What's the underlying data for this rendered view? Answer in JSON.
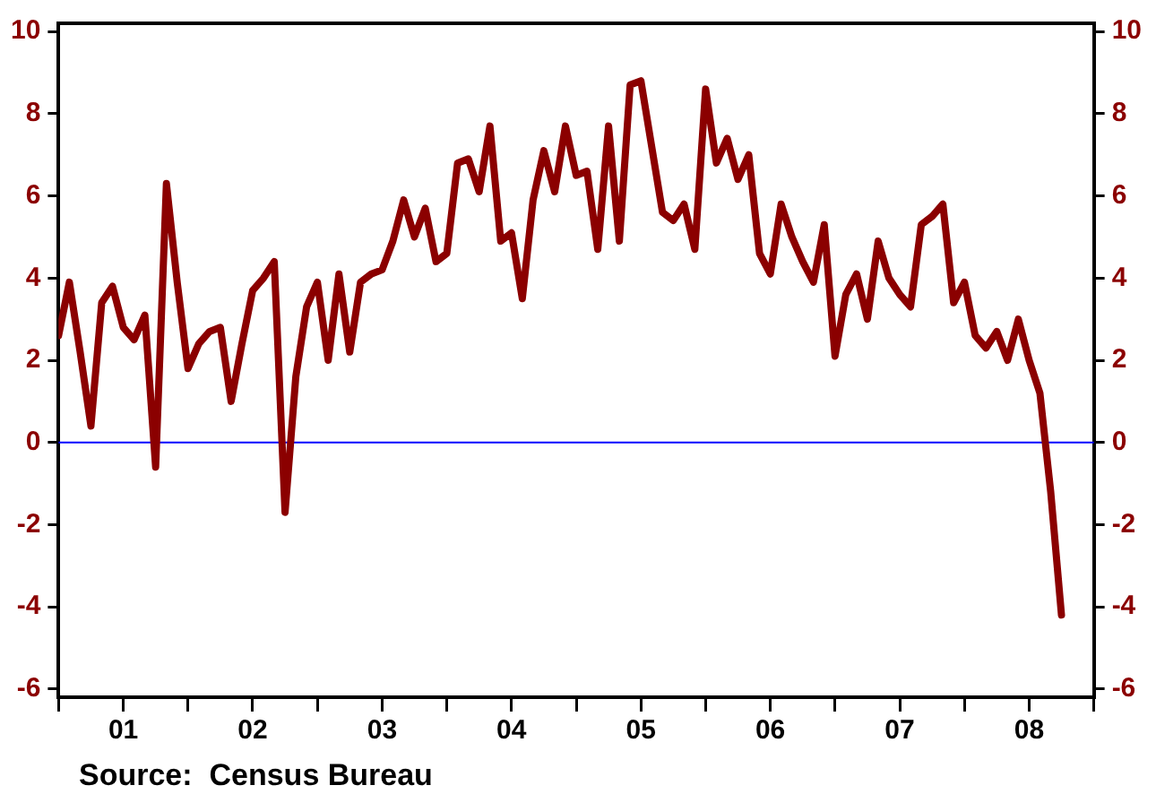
{
  "chart_data": {
    "type": "line",
    "x": [
      "2001-01",
      "2001-02",
      "2001-03",
      "2001-04",
      "2001-05",
      "2001-06",
      "2001-07",
      "2001-08",
      "2001-09",
      "2001-10",
      "2001-11",
      "2001-12",
      "2002-01",
      "2002-02",
      "2002-03",
      "2002-04",
      "2002-05",
      "2002-06",
      "2002-07",
      "2002-08",
      "2002-09",
      "2002-10",
      "2002-11",
      "2002-12",
      "2003-01",
      "2003-02",
      "2003-03",
      "2003-04",
      "2003-05",
      "2003-06",
      "2003-07",
      "2003-08",
      "2003-09",
      "2003-10",
      "2003-11",
      "2003-12",
      "2004-01",
      "2004-02",
      "2004-03",
      "2004-04",
      "2004-05",
      "2004-06",
      "2004-07",
      "2004-08",
      "2004-09",
      "2004-10",
      "2004-11",
      "2004-12",
      "2005-01",
      "2005-02",
      "2005-03",
      "2005-04",
      "2005-05",
      "2005-06",
      "2005-07",
      "2005-08",
      "2005-09",
      "2005-10",
      "2005-11",
      "2005-12",
      "2006-01",
      "2006-02",
      "2006-03",
      "2006-04",
      "2006-05",
      "2006-06",
      "2006-07",
      "2006-08",
      "2006-09",
      "2006-10",
      "2006-11",
      "2006-12",
      "2007-01",
      "2007-02",
      "2007-03",
      "2007-04",
      "2007-05",
      "2007-06",
      "2007-07",
      "2007-08",
      "2007-09",
      "2007-10",
      "2007-11",
      "2007-12",
      "2008-01",
      "2008-02",
      "2008-03",
      "2008-04",
      "2008-05",
      "2008-06",
      "2008-07",
      "2008-08",
      "2008-09",
      "2008-10"
    ],
    "series": [
      {
        "color": "#8b0000",
        "values": [
          2.6,
          3.9,
          2.2,
          0.4,
          3.4,
          3.8,
          2.8,
          2.5,
          3.1,
          -0.6,
          6.3,
          3.9,
          1.8,
          2.4,
          2.7,
          2.8,
          1.0,
          2.4,
          3.7,
          4.0,
          4.4,
          -1.7,
          1.6,
          3.3,
          3.9,
          2.0,
          4.1,
          2.2,
          3.9,
          4.1,
          4.2,
          4.9,
          5.9,
          5.0,
          5.7,
          4.4,
          4.6,
          6.8,
          6.9,
          6.1,
          7.7,
          4.9,
          5.1,
          3.5,
          5.9,
          7.1,
          6.1,
          7.7,
          6.5,
          6.6,
          4.7,
          7.7,
          4.9,
          8.7,
          8.8,
          7.2,
          5.6,
          5.4,
          5.8,
          4.7,
          8.6,
          6.8,
          7.4,
          6.4,
          7.0,
          4.6,
          4.1,
          5.8,
          5.0,
          4.4,
          3.9,
          5.3,
          2.1,
          3.6,
          4.1,
          3.0,
          4.9,
          4.0,
          3.6,
          3.3,
          5.3,
          5.5,
          5.8,
          3.4,
          3.9,
          2.6,
          2.3,
          2.7,
          2.0,
          3.0,
          2.0,
          1.2,
          -1.2,
          -4.2
        ]
      }
    ],
    "xlim": [
      "2001-01",
      "2009-01"
    ],
    "xticks": [
      {
        "value": "2001-01",
        "label": null
      },
      {
        "value": "2001-07",
        "label": "01"
      },
      {
        "value": "2002-01",
        "label": null
      },
      {
        "value": "2002-07",
        "label": "02"
      },
      {
        "value": "2003-01",
        "label": null
      },
      {
        "value": "2003-07",
        "label": "03"
      },
      {
        "value": "2004-01",
        "label": null
      },
      {
        "value": "2004-07",
        "label": "04"
      },
      {
        "value": "2005-01",
        "label": null
      },
      {
        "value": "2005-07",
        "label": "05"
      },
      {
        "value": "2006-01",
        "label": null
      },
      {
        "value": "2006-07",
        "label": "06"
      },
      {
        "value": "2007-01",
        "label": null
      },
      {
        "value": "2007-07",
        "label": "07"
      },
      {
        "value": "2008-01",
        "label": null
      },
      {
        "value": "2008-07",
        "label": "08"
      },
      {
        "value": "2009-01",
        "label": null
      }
    ],
    "ylim": [
      -6.2,
      10.2
    ],
    "yticks": [
      -6,
      -4,
      -2,
      0,
      2,
      4,
      6,
      8,
      10
    ],
    "y2lim": [
      -6.2,
      10.2
    ],
    "y2ticks": [
      -6,
      -4,
      -2,
      0,
      2,
      4,
      6,
      8,
      10
    ],
    "ref_lines": [
      {
        "axis": "y",
        "value": 0,
        "color": "#0000ff"
      }
    ],
    "annotations": [
      "Source:  Census Bureau"
    ],
    "grid": false,
    "legend": false,
    "marker": "none",
    "line_style": "solid"
  }
}
